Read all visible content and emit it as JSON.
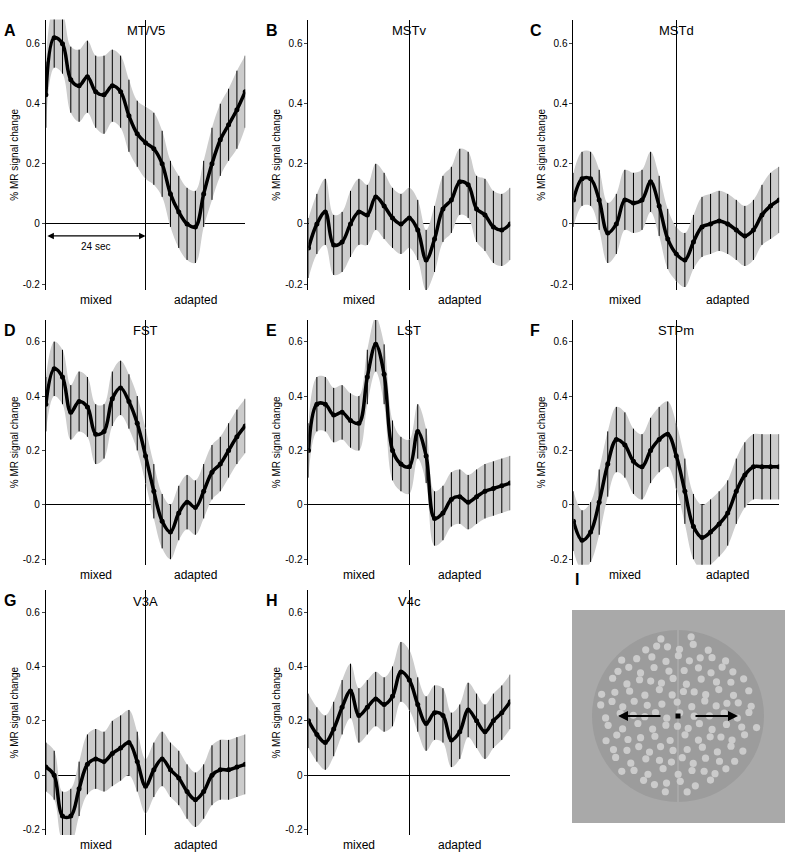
{
  "chart_data": [
    {
      "type": "line",
      "label": "A",
      "title": "MT/V5",
      "ylabel": "% MR signal change",
      "color": "#000000",
      "marker": "circle",
      "grid": true,
      "tick_labels": "y",
      "x": [
        0,
        2,
        4,
        6,
        8,
        10,
        12,
        14,
        16,
        18,
        20,
        22,
        24,
        26,
        28,
        30,
        32,
        34,
        36,
        38,
        40,
        42,
        44,
        46,
        48
      ],
      "values": [
        0.43,
        0.62,
        0.6,
        0.48,
        0.46,
        0.49,
        0.44,
        0.43,
        0.46,
        0.44,
        0.36,
        0.3,
        0.27,
        0.25,
        0.2,
        0.1,
        0.04,
        0.0,
        -0.01,
        0.1,
        0.2,
        0.28,
        0.33,
        0.38,
        0.44
      ],
      "errors": [
        0.11,
        0.1,
        0.1,
        0.11,
        0.12,
        0.12,
        0.12,
        0.13,
        0.12,
        0.12,
        0.12,
        0.11,
        0.12,
        0.12,
        0.11,
        0.11,
        0.12,
        0.12,
        0.12,
        0.11,
        0.12,
        0.12,
        0.12,
        0.13,
        0.12
      ],
      "xlim": [
        0,
        48
      ],
      "xticks": [
        0,
        24,
        48
      ],
      "ylim": [
        -0.22,
        0.68
      ],
      "yticks": [
        -0.2,
        0,
        0.2,
        0.4,
        0.6
      ],
      "block_labels": [
        {
          "text": "mixed",
          "x": 12
        },
        {
          "text": "adapted",
          "x": 36
        }
      ],
      "annotations": [
        {
          "text": "24 sec",
          "x0": 0,
          "x1": 24,
          "y": -0.04
        }
      ]
    },
    {
      "type": "line",
      "label": "B",
      "title": "MSTv",
      "ylabel": "% MR signal change",
      "color": "#000000",
      "marker": "circle",
      "grid": true,
      "tick_labels": "y",
      "x": [
        0,
        2,
        4,
        6,
        8,
        10,
        12,
        14,
        16,
        18,
        20,
        22,
        24,
        26,
        28,
        30,
        32,
        34,
        36,
        38,
        40,
        42,
        44,
        46,
        48
      ],
      "values": [
        -0.08,
        0.0,
        0.04,
        -0.07,
        -0.06,
        0.0,
        0.04,
        0.03,
        0.09,
        0.06,
        0.02,
        0.0,
        0.02,
        -0.02,
        -0.12,
        -0.05,
        0.05,
        0.08,
        0.14,
        0.13,
        0.05,
        0.03,
        -0.01,
        -0.02,
        0.0
      ],
      "errors": [
        0.1,
        0.1,
        0.11,
        0.1,
        0.1,
        0.11,
        0.11,
        0.1,
        0.11,
        0.11,
        0.1,
        0.1,
        0.1,
        0.1,
        0.1,
        0.11,
        0.11,
        0.11,
        0.11,
        0.11,
        0.11,
        0.12,
        0.12,
        0.12,
        0.12
      ],
      "xlim": [
        0,
        48
      ],
      "xticks": [
        0,
        24,
        48
      ],
      "ylim": [
        -0.22,
        0.68
      ],
      "yticks": [
        -0.2,
        0,
        0.2,
        0.4,
        0.6
      ],
      "block_labels": [
        {
          "text": "mixed",
          "x": 12
        },
        {
          "text": "adapted",
          "x": 36
        }
      ]
    },
    {
      "type": "line",
      "label": "C",
      "title": "MSTd",
      "ylabel": "% MR signal change",
      "color": "#000000",
      "marker": "circle",
      "grid": true,
      "tick_labels": "y",
      "x": [
        0,
        2,
        4,
        6,
        8,
        10,
        12,
        14,
        16,
        18,
        20,
        22,
        24,
        26,
        28,
        30,
        32,
        34,
        36,
        38,
        40,
        42,
        44,
        46,
        48
      ],
      "values": [
        0.08,
        0.15,
        0.15,
        0.08,
        -0.03,
        0.0,
        0.08,
        0.07,
        0.08,
        0.14,
        0.06,
        -0.05,
        -0.1,
        -0.12,
        -0.06,
        -0.01,
        0.0,
        0.01,
        0.0,
        -0.02,
        -0.04,
        -0.02,
        0.03,
        0.06,
        0.08
      ],
      "errors": [
        0.09,
        0.09,
        0.09,
        0.1,
        0.1,
        0.1,
        0.1,
        0.1,
        0.1,
        0.1,
        0.1,
        0.1,
        0.09,
        0.09,
        0.09,
        0.1,
        0.1,
        0.1,
        0.1,
        0.1,
        0.1,
        0.1,
        0.1,
        0.11,
        0.11
      ],
      "xlim": [
        0,
        48
      ],
      "xticks": [
        0,
        24,
        48
      ],
      "ylim": [
        -0.22,
        0.68
      ],
      "yticks": [
        -0.2,
        0,
        0.2,
        0.4,
        0.6
      ],
      "block_labels": [
        {
          "text": "mixed",
          "x": 12
        },
        {
          "text": "adapted",
          "x": 36
        }
      ]
    },
    {
      "type": "line",
      "label": "D",
      "title": "FST",
      "ylabel": "% MR signal change",
      "color": "#000000",
      "marker": "circle",
      "grid": true,
      "tick_labels": "y",
      "x": [
        0,
        2,
        4,
        6,
        8,
        10,
        12,
        14,
        16,
        18,
        20,
        22,
        24,
        26,
        28,
        30,
        32,
        34,
        36,
        38,
        40,
        42,
        44,
        46,
        48
      ],
      "values": [
        0.37,
        0.5,
        0.47,
        0.34,
        0.38,
        0.36,
        0.26,
        0.27,
        0.39,
        0.43,
        0.38,
        0.3,
        0.18,
        0.05,
        -0.06,
        -0.1,
        -0.03,
        0.01,
        -0.01,
        0.05,
        0.12,
        0.15,
        0.2,
        0.25,
        0.29
      ],
      "errors": [
        0.1,
        0.1,
        0.1,
        0.1,
        0.11,
        0.11,
        0.11,
        0.1,
        0.1,
        0.1,
        0.1,
        0.1,
        0.1,
        0.1,
        0.1,
        0.1,
        0.1,
        0.1,
        0.1,
        0.1,
        0.1,
        0.1,
        0.1,
        0.1,
        0.1
      ],
      "xlim": [
        0,
        48
      ],
      "xticks": [
        0,
        24,
        48
      ],
      "ylim": [
        -0.22,
        0.68
      ],
      "yticks": [
        -0.2,
        0,
        0.2,
        0.4,
        0.6
      ],
      "block_labels": [
        {
          "text": "mixed",
          "x": 12
        },
        {
          "text": "adapted",
          "x": 36
        }
      ]
    },
    {
      "type": "line",
      "label": "E",
      "title": "LST",
      "ylabel": "% MR signal change",
      "color": "#000000",
      "marker": "circle",
      "grid": true,
      "tick_labels": "y",
      "x": [
        0,
        2,
        4,
        6,
        8,
        10,
        12,
        14,
        16,
        18,
        20,
        22,
        24,
        26,
        28,
        30,
        32,
        34,
        36,
        38,
        40,
        42,
        44,
        46,
        48
      ],
      "values": [
        0.2,
        0.37,
        0.37,
        0.33,
        0.34,
        0.31,
        0.3,
        0.47,
        0.59,
        0.48,
        0.2,
        0.15,
        0.14,
        0.27,
        0.18,
        -0.05,
        -0.03,
        0.02,
        0.03,
        0.01,
        0.03,
        0.05,
        0.06,
        0.07,
        0.08
      ],
      "errors": [
        0.1,
        0.1,
        0.1,
        0.1,
        0.1,
        0.1,
        0.1,
        0.1,
        0.1,
        0.11,
        0.11,
        0.1,
        0.1,
        0.1,
        0.1,
        0.1,
        0.1,
        0.1,
        0.1,
        0.1,
        0.1,
        0.1,
        0.1,
        0.1,
        0.1
      ],
      "xlim": [
        0,
        48
      ],
      "xticks": [
        0,
        24,
        48
      ],
      "ylim": [
        -0.22,
        0.68
      ],
      "yticks": [
        -0.2,
        0,
        0.2,
        0.4,
        0.6
      ],
      "block_labels": [
        {
          "text": "mixed",
          "x": 12
        },
        {
          "text": "adapted",
          "x": 36
        }
      ]
    },
    {
      "type": "line",
      "label": "F",
      "title": "STPm",
      "ylabel": "% MR signal change",
      "color": "#000000",
      "marker": "circle",
      "grid": true,
      "tick_labels": "y",
      "x": [
        0,
        2,
        4,
        6,
        8,
        10,
        12,
        14,
        16,
        18,
        20,
        22,
        24,
        26,
        28,
        30,
        32,
        34,
        36,
        38,
        40,
        42,
        44,
        46,
        48
      ],
      "values": [
        -0.06,
        -0.13,
        -0.1,
        0.01,
        0.15,
        0.24,
        0.22,
        0.16,
        0.14,
        0.2,
        0.24,
        0.26,
        0.18,
        0.05,
        -0.08,
        -0.12,
        -0.1,
        -0.07,
        -0.03,
        0.05,
        0.11,
        0.14,
        0.14,
        0.14,
        0.14
      ],
      "errors": [
        0.11,
        0.11,
        0.11,
        0.12,
        0.12,
        0.12,
        0.12,
        0.12,
        0.12,
        0.12,
        0.12,
        0.12,
        0.12,
        0.12,
        0.12,
        0.12,
        0.12,
        0.12,
        0.12,
        0.12,
        0.12,
        0.12,
        0.12,
        0.12,
        0.12
      ],
      "xlim": [
        0,
        48
      ],
      "xticks": [
        0,
        24,
        48
      ],
      "ylim": [
        -0.22,
        0.68
      ],
      "yticks": [
        -0.2,
        0,
        0.2,
        0.4,
        0.6
      ],
      "block_labels": [
        {
          "text": "mixed",
          "x": 12
        },
        {
          "text": "adapted",
          "x": 36
        }
      ]
    },
    {
      "type": "line",
      "label": "G",
      "title": "V3A",
      "ylabel": "% MR signal change",
      "color": "#000000",
      "marker": "circle",
      "grid": true,
      "tick_labels": "y",
      "x": [
        0,
        2,
        4,
        6,
        8,
        10,
        12,
        14,
        16,
        18,
        20,
        22,
        24,
        26,
        28,
        30,
        32,
        34,
        36,
        38,
        40,
        42,
        44,
        46,
        48
      ],
      "values": [
        0.03,
        0.0,
        -0.15,
        -0.15,
        -0.05,
        0.04,
        0.06,
        0.05,
        0.08,
        0.1,
        0.12,
        0.05,
        -0.04,
        0.02,
        0.06,
        0.02,
        -0.01,
        -0.06,
        -0.09,
        -0.06,
        0.0,
        0.02,
        0.02,
        0.03,
        0.04
      ],
      "errors": [
        0.09,
        0.09,
        0.09,
        0.1,
        0.1,
        0.11,
        0.11,
        0.11,
        0.12,
        0.12,
        0.12,
        0.11,
        0.1,
        0.1,
        0.1,
        0.1,
        0.1,
        0.1,
        0.1,
        0.1,
        0.11,
        0.11,
        0.11,
        0.11,
        0.11
      ],
      "xlim": [
        0,
        48
      ],
      "xticks": [
        0,
        24,
        48
      ],
      "ylim": [
        -0.22,
        0.68
      ],
      "yticks": [
        -0.2,
        0,
        0.2,
        0.4,
        0.6
      ],
      "block_labels": [
        {
          "text": "mixed",
          "x": 12
        },
        {
          "text": "adapted",
          "x": 36
        }
      ]
    },
    {
      "type": "line",
      "label": "H",
      "title": "V4c",
      "ylabel": "% MR signal change",
      "color": "#000000",
      "marker": "circle",
      "grid": true,
      "tick_labels": "y",
      "x": [
        0,
        2,
        4,
        6,
        8,
        10,
        12,
        14,
        16,
        18,
        20,
        22,
        24,
        26,
        28,
        30,
        32,
        34,
        36,
        38,
        40,
        42,
        44,
        46,
        48
      ],
      "values": [
        0.2,
        0.15,
        0.12,
        0.17,
        0.25,
        0.31,
        0.22,
        0.25,
        0.28,
        0.26,
        0.29,
        0.38,
        0.35,
        0.26,
        0.19,
        0.23,
        0.22,
        0.13,
        0.16,
        0.24,
        0.2,
        0.16,
        0.2,
        0.23,
        0.27
      ],
      "errors": [
        0.1,
        0.1,
        0.1,
        0.1,
        0.1,
        0.1,
        0.1,
        0.1,
        0.1,
        0.1,
        0.11,
        0.11,
        0.11,
        0.1,
        0.1,
        0.1,
        0.1,
        0.1,
        0.1,
        0.1,
        0.1,
        0.1,
        0.1,
        0.1,
        0.1
      ],
      "xlim": [
        0,
        48
      ],
      "xticks": [
        0,
        24,
        48
      ],
      "ylim": [
        -0.22,
        0.68
      ],
      "yticks": [
        -0.2,
        0,
        0.2,
        0.4,
        0.6
      ],
      "block_labels": [
        {
          "text": "mixed",
          "x": 12
        },
        {
          "text": "adapted",
          "x": 36
        }
      ]
    }
  ],
  "stimulus": {
    "label": "I"
  }
}
